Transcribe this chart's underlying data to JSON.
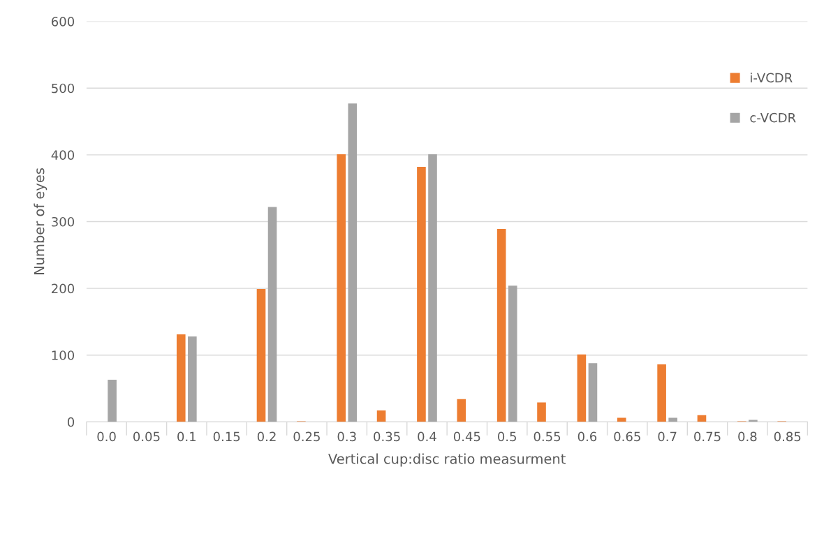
{
  "chart_data": {
    "type": "bar",
    "xlabel": "Vertical cup:disc ratio measurment",
    "ylabel": "Number of eyes",
    "categories": [
      "0.0",
      "0.05",
      "0.1",
      "0.15",
      "0.2",
      "0.25",
      "0.3",
      "0.35",
      "0.4",
      "0.45",
      "0.5",
      "0.55",
      "0.6",
      "0.65",
      "0.7",
      "0.75",
      "0.8",
      "0.85"
    ],
    "series": [
      {
        "name": "i-VCDR",
        "color": "#ed7d31",
        "values": [
          0,
          0,
          131,
          0,
          199,
          1,
          401,
          17,
          382,
          34,
          289,
          29,
          101,
          6,
          86,
          10,
          1,
          1
        ]
      },
      {
        "name": "c-VCDR",
        "color": "#a5a5a5",
        "values": [
          63,
          0,
          128,
          0,
          322,
          0,
          477,
          0,
          401,
          0,
          204,
          0,
          88,
          0,
          6,
          0,
          3,
          0
        ]
      }
    ],
    "ylim": [
      0,
      600
    ],
    "yticks": [
      0,
      100,
      200,
      300,
      400,
      500,
      600
    ],
    "grid": "y",
    "legend": "top right"
  }
}
